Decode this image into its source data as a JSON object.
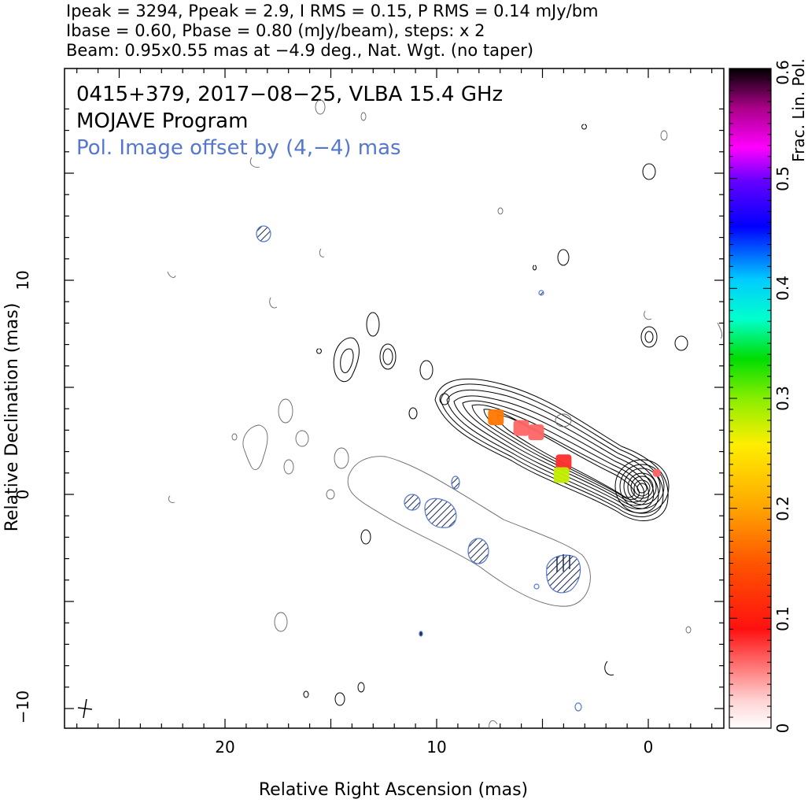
{
  "header": {
    "line1": "Ipeak = 3294, Ppeak = 2.9, I RMS = 0.15, P RMS = 0.14 mJy/bm",
    "line2": "Ibase = 0.60, Pbase = 0.80 (mJy/beam), steps: x 2",
    "line3": "Beam: 0.95x0.55 mas at −4.9 deg., Nat. Wgt. (no taper)"
  },
  "plot": {
    "title1": "0415+379, 2017−08−25, VLBA 15.4 GHz",
    "title2": "MOJAVE Program",
    "title3": "Pol. Image offset by (4,−4) mas"
  },
  "colors": {
    "total_intensity_contours": "#000000",
    "polarization_contours": "#5577cc",
    "fractional_pol_low": "#ff2a2a",
    "fractional_pol_mid": "#ffdd00",
    "title3_color": "#5577cc"
  },
  "chart_data": {
    "type": "heatmap",
    "xlabel": "Relative Right Ascension (mas)",
    "ylabel": "Relative Declination (mas)",
    "xlim": [
      27,
      -3.5
    ],
    "ylim": [
      -11,
      18
    ],
    "x_ticks": [
      "20",
      "10",
      "0"
    ],
    "y_ticks": [
      "−10",
      "0",
      "10"
    ],
    "colorbar": {
      "label": "Frac. Lin. Pol.",
      "range": [
        0,
        0.6
      ],
      "ticks": [
        "0",
        "0.1",
        "0.2",
        "0.3",
        "0.4",
        "0.5",
        "0.6"
      ]
    },
    "core": {
      "x": 0.2,
      "y": 0.3,
      "peak_mJy": 3294
    },
    "pol_patches": [
      {
        "x": 7.2,
        "y": 3.6,
        "frac": 0.17
      },
      {
        "x": 6.0,
        "y": 3.1,
        "frac": 0.06
      },
      {
        "x": 5.3,
        "y": 2.9,
        "frac": 0.06
      },
      {
        "x": 4.0,
        "y": 1.5,
        "frac": 0.08
      },
      {
        "x": 4.1,
        "y": 0.9,
        "frac": 0.28
      },
      {
        "x": -0.4,
        "y": 1.0,
        "frac": 0.06
      }
    ]
  }
}
